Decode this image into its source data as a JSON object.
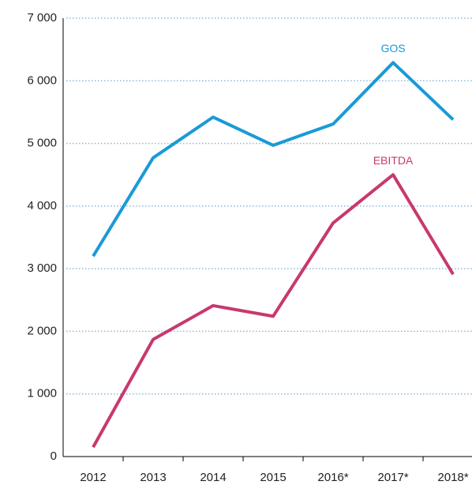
{
  "chart_data": {
    "type": "line",
    "categories": [
      "2012",
      "2013",
      "2014",
      "2015",
      "2016*",
      "2017*",
      "2018*"
    ],
    "series": [
      {
        "name": "GOS",
        "color": "#1a9ad6",
        "values": [
          3200,
          4770,
          5420,
          4970,
          5310,
          6290,
          5380
        ]
      },
      {
        "name": "EBITDA",
        "color": "#c8386e",
        "values": [
          150,
          1870,
          2410,
          2240,
          3730,
          4500,
          2910
        ]
      }
    ],
    "ylim": [
      0,
      7000
    ],
    "yticks": [
      0,
      {
        "value": 1000,
        "label": "1 000"
      },
      {
        "value": 2000,
        "label": "2 000"
      },
      {
        "value": 3000,
        "label": "3 000"
      },
      {
        "value": 4000,
        "label": "4 000"
      },
      {
        "value": 5000,
        "label": "5 000"
      },
      {
        "value": 6000,
        "label": "6 000"
      },
      {
        "value": 7000,
        "label": "7 000"
      }
    ],
    "grid": true
  }
}
